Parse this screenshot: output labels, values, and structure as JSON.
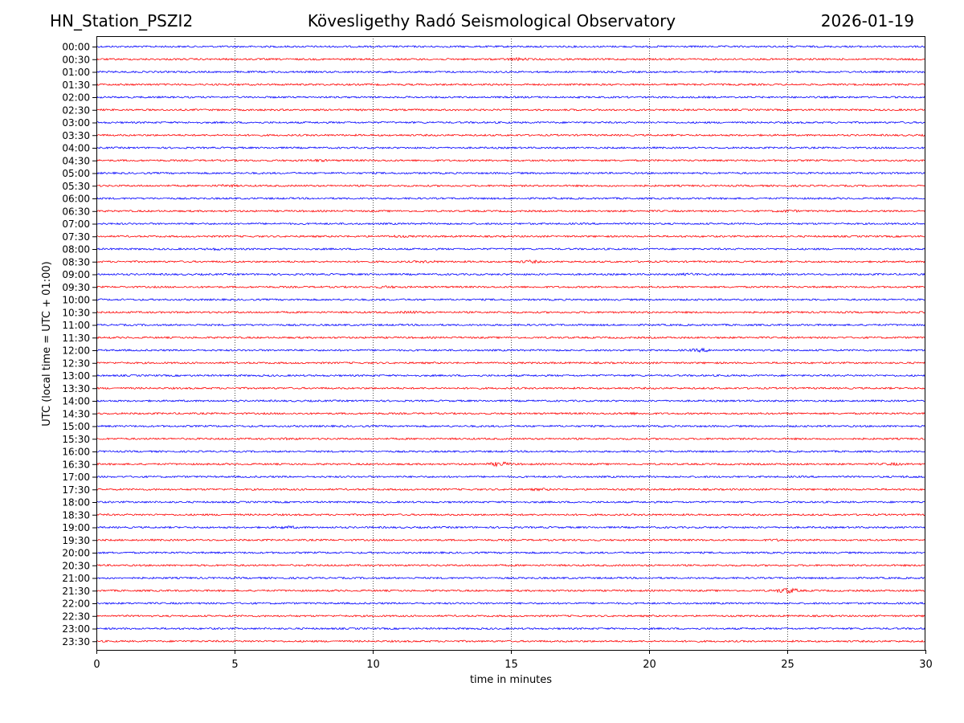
{
  "header": {
    "station": "HN_Station_PSZI2",
    "observatory": "Kövesligethy Radó Seismological Observatory",
    "date": "2026-01-19"
  },
  "chart_data": {
    "type": "line",
    "xlabel": "time in minutes",
    "ylabel": "UTC (local time = UTC + 01:00)",
    "xlim": [
      0,
      30
    ],
    "xticks": [
      0,
      5,
      10,
      15,
      20,
      25,
      30
    ],
    "grid": "vertical dotted at x ticks",
    "series_colors": [
      "#0000ff",
      "#ff0000"
    ],
    "row_labels": [
      "00:00",
      "00:30",
      "01:00",
      "01:30",
      "02:00",
      "02:30",
      "03:00",
      "03:30",
      "04:00",
      "04:30",
      "05:00",
      "05:30",
      "06:00",
      "06:30",
      "07:00",
      "07:30",
      "08:00",
      "08:30",
      "09:00",
      "09:30",
      "10:00",
      "10:30",
      "11:00",
      "11:30",
      "12:00",
      "12:30",
      "13:00",
      "13:30",
      "14:00",
      "14:30",
      "15:00",
      "15:30",
      "16:00",
      "16:30",
      "17:00",
      "17:30",
      "18:00",
      "18:30",
      "19:00",
      "19:30",
      "20:00",
      "20:30",
      "21:00",
      "21:30",
      "22:00",
      "22:30",
      "23:00",
      "23:30"
    ],
    "events": [
      {
        "row": "00:30",
        "minute": 15.2,
        "amplitude": 1.8
      },
      {
        "row": "04:30",
        "minute": 8.0,
        "amplitude": 1.5
      },
      {
        "row": "05:30",
        "minute": 4.7,
        "amplitude": 1.6
      },
      {
        "row": "06:30",
        "minute": 25.0,
        "amplitude": 1.6
      },
      {
        "row": "07:30",
        "minute": 10.8,
        "amplitude": 1.5
      },
      {
        "row": "08:00",
        "minute": 4.3,
        "amplitude": 1.5
      },
      {
        "row": "08:30",
        "minute": 12.0,
        "amplitude": 1.5
      },
      {
        "row": "08:30",
        "minute": 15.7,
        "amplitude": 1.8
      },
      {
        "row": "09:00",
        "minute": 21.5,
        "amplitude": 1.6
      },
      {
        "row": "09:30",
        "minute": 10.5,
        "amplitude": 1.5
      },
      {
        "row": "10:30",
        "minute": 11.4,
        "amplitude": 1.6
      },
      {
        "row": "12:00",
        "minute": 21.9,
        "amplitude": 2.0
      },
      {
        "row": "14:30",
        "minute": 19.3,
        "amplitude": 1.5
      },
      {
        "row": "15:30",
        "minute": 7.0,
        "amplitude": 1.4
      },
      {
        "row": "16:30",
        "minute": 14.6,
        "amplitude": 2.6
      },
      {
        "row": "16:30",
        "minute": 28.8,
        "amplitude": 1.6
      },
      {
        "row": "17:00",
        "minute": 29.5,
        "amplitude": 1.4
      },
      {
        "row": "17:30",
        "minute": 16.1,
        "amplitude": 1.5
      },
      {
        "row": "19:00",
        "minute": 6.9,
        "amplitude": 1.8
      },
      {
        "row": "19:30",
        "minute": 24.7,
        "amplitude": 1.4
      },
      {
        "row": "21:30",
        "minute": 25.0,
        "amplitude": 3.2
      }
    ]
  }
}
